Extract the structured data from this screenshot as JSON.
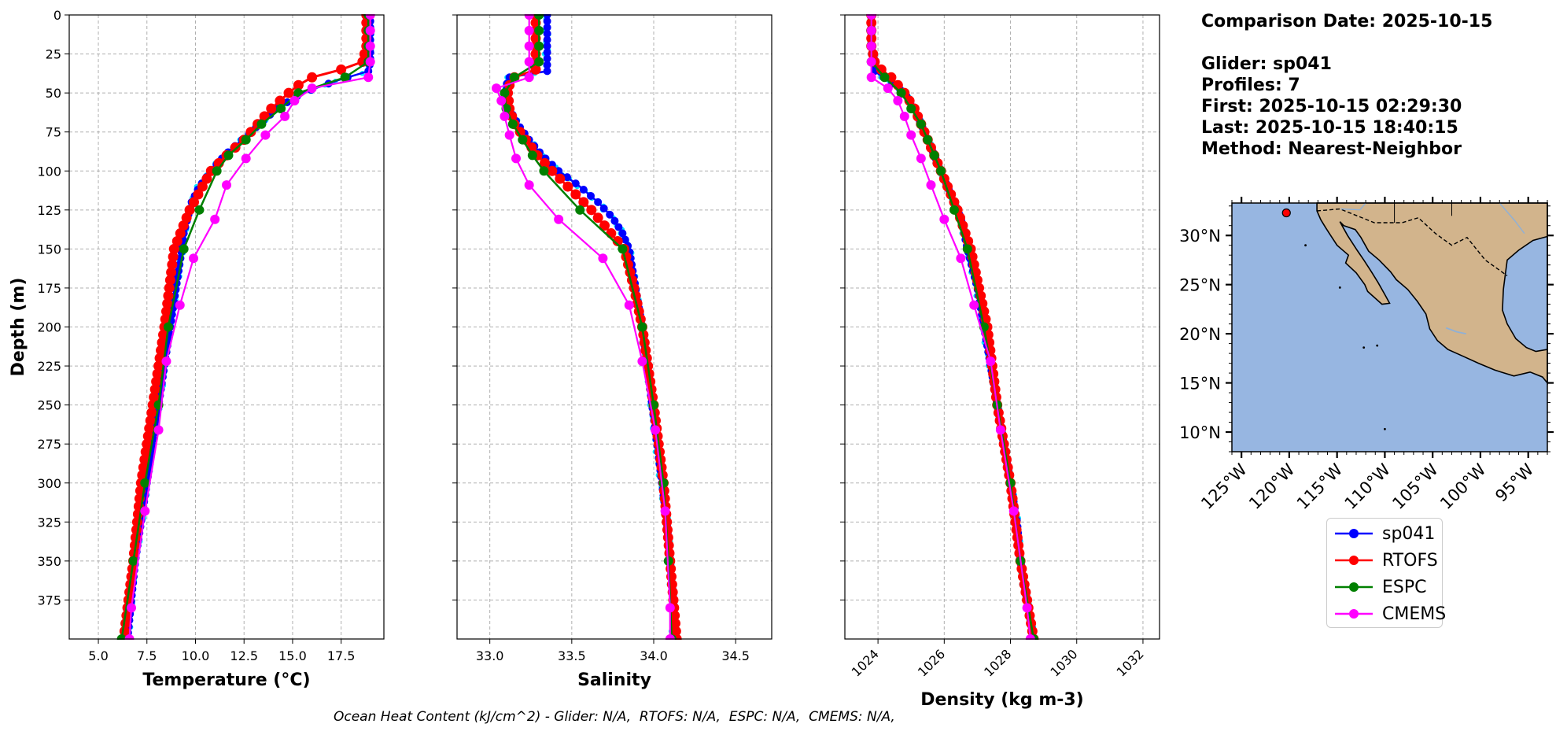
{
  "info": {
    "comparison_date": "Comparison Date: 2025-10-15",
    "glider": "Glider: sp041",
    "profiles": "Profiles: 7",
    "first": "First: 2025-10-15 02:29:30",
    "last": "Last: 2025-10-15 18:40:15",
    "method": "Method: Nearest-Neighbor"
  },
  "footer": "Ocean Heat Content (kJ/cm^2) - Glider: N/A,  RTOFS: N/A,  ESPC: N/A,  CMEMS: N/A,",
  "colors": {
    "sp041": "#0000ff",
    "RTOFS": "#ff0000",
    "ESPC": "#008000",
    "CMEMS": "#ff00ff",
    "glider_raw": "#00e5ff",
    "ocean": "#97b6e1",
    "land": "#d2b48c"
  },
  "legend": [
    "sp041",
    "RTOFS",
    "ESPC",
    "CMEMS"
  ],
  "chart_data": [
    {
      "type": "line",
      "xlabel": "Temperature (°C)",
      "ylabel": "Depth (m)",
      "xlim": [
        3.5,
        19.7
      ],
      "ylim": [
        400,
        0
      ],
      "xticks": [
        "5.0",
        "7.5",
        "10.0",
        "12.5",
        "15.0",
        "17.5"
      ],
      "xtick_values": [
        5.0,
        7.5,
        10.0,
        12.5,
        15.0,
        17.5
      ],
      "yticks": [
        "0",
        "25",
        "50",
        "75",
        "100",
        "125",
        "150",
        "175",
        "200",
        "225",
        "250",
        "275",
        "300",
        "325",
        "350",
        "375"
      ],
      "ytick_values": [
        0,
        25,
        50,
        75,
        100,
        125,
        150,
        175,
        200,
        225,
        250,
        275,
        300,
        325,
        350,
        375
      ],
      "grid": true,
      "series": [
        {
          "name": "sp041",
          "depth": [
            0,
            10,
            20,
            30,
            36,
            42,
            50,
            60,
            70,
            80,
            90,
            100,
            110,
            120,
            130,
            140,
            150,
            175,
            200,
            225,
            250,
            275,
            300,
            325,
            350,
            375,
            400
          ],
          "values": [
            19.0,
            19.0,
            19.0,
            19.0,
            18.9,
            17.3,
            15.5,
            14.2,
            13.3,
            12.4,
            11.5,
            10.8,
            10.2,
            9.8,
            9.6,
            9.4,
            9.3,
            9.0,
            8.7,
            8.4,
            8.1,
            7.8,
            7.5,
            7.2,
            6.9,
            6.7,
            6.5
          ]
        },
        {
          "name": "RTOFS",
          "depth": [
            0,
            10,
            20,
            30,
            35,
            40,
            45,
            50,
            60,
            70,
            80,
            90,
            100,
            125,
            150,
            200,
            250,
            300,
            350,
            400
          ],
          "values": [
            18.8,
            18.8,
            18.8,
            18.6,
            17.5,
            16.0,
            15.3,
            14.8,
            13.9,
            13.2,
            12.5,
            11.6,
            10.8,
            9.7,
            8.9,
            8.4,
            7.8,
            7.2,
            6.8,
            6.3
          ]
        },
        {
          "name": "ESPC",
          "depth": [
            0,
            10,
            20,
            30,
            40,
            50,
            60,
            70,
            80,
            90,
            100,
            125,
            150,
            200,
            250,
            300,
            350,
            400
          ],
          "values": [
            18.9,
            18.9,
            18.9,
            18.9,
            17.7,
            15.3,
            14.4,
            13.4,
            12.6,
            11.7,
            11.1,
            10.2,
            9.4,
            8.6,
            8.1,
            7.4,
            6.8,
            6.2
          ]
        },
        {
          "name": "CMEMS",
          "depth": [
            0,
            10,
            20,
            30,
            40,
            47,
            55,
            65,
            77,
            92,
            109,
            131,
            156,
            186,
            222,
            266,
            318,
            380,
            400
          ],
          "values": [
            19.0,
            19.0,
            19.0,
            19.0,
            18.9,
            16.0,
            15.1,
            14.6,
            13.6,
            12.6,
            11.6,
            11.0,
            9.9,
            9.2,
            8.5,
            8.1,
            7.4,
            6.7,
            6.6
          ]
        }
      ]
    },
    {
      "type": "line",
      "xlabel": "Salinity",
      "ylabel": "",
      "xlim": [
        32.8,
        34.72
      ],
      "ylim": [
        400,
        0
      ],
      "xticks": [
        "33.0",
        "33.5",
        "34.0",
        "34.5"
      ],
      "xtick_values": [
        33.0,
        33.5,
        34.0,
        34.5
      ],
      "grid": true,
      "series": [
        {
          "name": "sp041",
          "depth": [
            0,
            10,
            20,
            30,
            36,
            40,
            45,
            50,
            55,
            60,
            70,
            80,
            90,
            100,
            110,
            120,
            130,
            140,
            150,
            175,
            200,
            225,
            250,
            275,
            300,
            325,
            350,
            375,
            400
          ],
          "values": [
            33.35,
            33.35,
            33.35,
            33.35,
            33.35,
            33.12,
            33.1,
            33.1,
            33.11,
            33.12,
            33.17,
            33.24,
            33.32,
            33.42,
            33.55,
            33.66,
            33.75,
            33.81,
            33.85,
            33.89,
            33.93,
            33.96,
            33.99,
            34.02,
            34.05,
            34.08,
            34.1,
            34.12,
            34.12
          ]
        },
        {
          "name": "RTOFS",
          "depth": [
            0,
            10,
            20,
            30,
            35,
            40,
            45,
            50,
            60,
            70,
            80,
            90,
            100,
            125,
            150,
            175,
            200,
            250,
            300,
            350,
            400
          ],
          "values": [
            33.28,
            33.28,
            33.28,
            33.28,
            33.28,
            33.15,
            33.12,
            33.11,
            33.12,
            33.15,
            33.22,
            33.29,
            33.38,
            33.62,
            33.82,
            33.88,
            33.93,
            34.0,
            34.06,
            34.1,
            34.14
          ]
        },
        {
          "name": "ESPC",
          "depth": [
            0,
            10,
            20,
            30,
            40,
            50,
            60,
            70,
            80,
            90,
            100,
            125,
            150,
            200,
            250,
            300,
            350,
            400
          ],
          "values": [
            33.3,
            33.3,
            33.3,
            33.3,
            33.15,
            33.09,
            33.1,
            33.14,
            33.2,
            33.26,
            33.33,
            33.55,
            33.81,
            33.93,
            34.0,
            34.06,
            34.09,
            34.11
          ]
        },
        {
          "name": "CMEMS",
          "depth": [
            0,
            10,
            20,
            30,
            40,
            47,
            55,
            65,
            77,
            92,
            109,
            131,
            156,
            186,
            222,
            266,
            318,
            380,
            400
          ],
          "values": [
            33.24,
            33.24,
            33.24,
            33.24,
            33.24,
            33.04,
            33.07,
            33.09,
            33.12,
            33.16,
            33.24,
            33.42,
            33.69,
            33.85,
            33.93,
            34.01,
            34.07,
            34.1,
            34.1
          ]
        }
      ]
    },
    {
      "type": "line",
      "xlabel": "Density (kg m-3)",
      "ylabel": "",
      "xlim": [
        1023.0,
        1032.5
      ],
      "ylim": [
        400,
        0
      ],
      "xticks": [
        "1024",
        "1026",
        "1028",
        "1030",
        "1032"
      ],
      "xtick_values": [
        1024,
        1026,
        1028,
        1030,
        1032
      ],
      "grid": true,
      "series": [
        {
          "name": "sp041",
          "depth": [
            0,
            10,
            20,
            30,
            36,
            42,
            50,
            60,
            70,
            80,
            90,
            100,
            110,
            120,
            130,
            140,
            150,
            175,
            200,
            225,
            250,
            275,
            300,
            325,
            350,
            375,
            400
          ],
          "values": [
            1023.8,
            1023.8,
            1023.8,
            1023.9,
            1023.9,
            1024.3,
            1024.8,
            1025.1,
            1025.3,
            1025.5,
            1025.7,
            1025.9,
            1026.1,
            1026.3,
            1026.5,
            1026.6,
            1026.7,
            1027.0,
            1027.2,
            1027.4,
            1027.6,
            1027.8,
            1028.0,
            1028.2,
            1028.3,
            1028.5,
            1028.7
          ]
        },
        {
          "name": "RTOFS",
          "depth": [
            0,
            10,
            20,
            30,
            35,
            40,
            45,
            50,
            60,
            70,
            80,
            90,
            100,
            125,
            150,
            200,
            250,
            300,
            350,
            400
          ],
          "values": [
            1023.8,
            1023.8,
            1023.8,
            1023.9,
            1024.1,
            1024.4,
            1024.6,
            1024.8,
            1025.1,
            1025.3,
            1025.5,
            1025.7,
            1025.9,
            1026.4,
            1026.8,
            1027.3,
            1027.6,
            1028.0,
            1028.3,
            1028.7
          ]
        },
        {
          "name": "ESPC",
          "depth": [
            0,
            10,
            20,
            30,
            40,
            50,
            60,
            70,
            80,
            90,
            100,
            125,
            150,
            200,
            250,
            300,
            350,
            400
          ],
          "values": [
            1023.8,
            1023.8,
            1023.8,
            1023.8,
            1024.2,
            1024.7,
            1025.0,
            1025.3,
            1025.5,
            1025.7,
            1025.9,
            1026.3,
            1026.7,
            1027.2,
            1027.6,
            1028.0,
            1028.3,
            1028.7
          ]
        },
        {
          "name": "CMEMS",
          "depth": [
            0,
            10,
            20,
            30,
            40,
            47,
            55,
            65,
            77,
            92,
            109,
            131,
            156,
            186,
            222,
            266,
            318,
            380,
            400
          ],
          "values": [
            1023.8,
            1023.8,
            1023.8,
            1023.8,
            1023.8,
            1024.3,
            1024.6,
            1024.8,
            1025.0,
            1025.3,
            1025.6,
            1026.0,
            1026.5,
            1026.9,
            1027.4,
            1027.7,
            1028.1,
            1028.5,
            1028.6
          ]
        }
      ]
    },
    {
      "type": "map",
      "xticks": [
        "125°W",
        "120°W",
        "115°W",
        "110°W",
        "105°W",
        "100°W",
        "95°W"
      ],
      "xtick_values": [
        -125,
        -120,
        -115,
        -110,
        -105,
        -100,
        -95
      ],
      "yticks": [
        "30°N",
        "25°N",
        "20°N",
        "15°N",
        "10°N"
      ],
      "ytick_values": [
        30,
        25,
        20,
        15,
        10
      ],
      "lon_range": [
        -126,
        -93
      ],
      "lat_range": [
        8,
        33.3
      ],
      "glider_position": {
        "lon": -120.3,
        "lat": 32.3
      }
    }
  ]
}
